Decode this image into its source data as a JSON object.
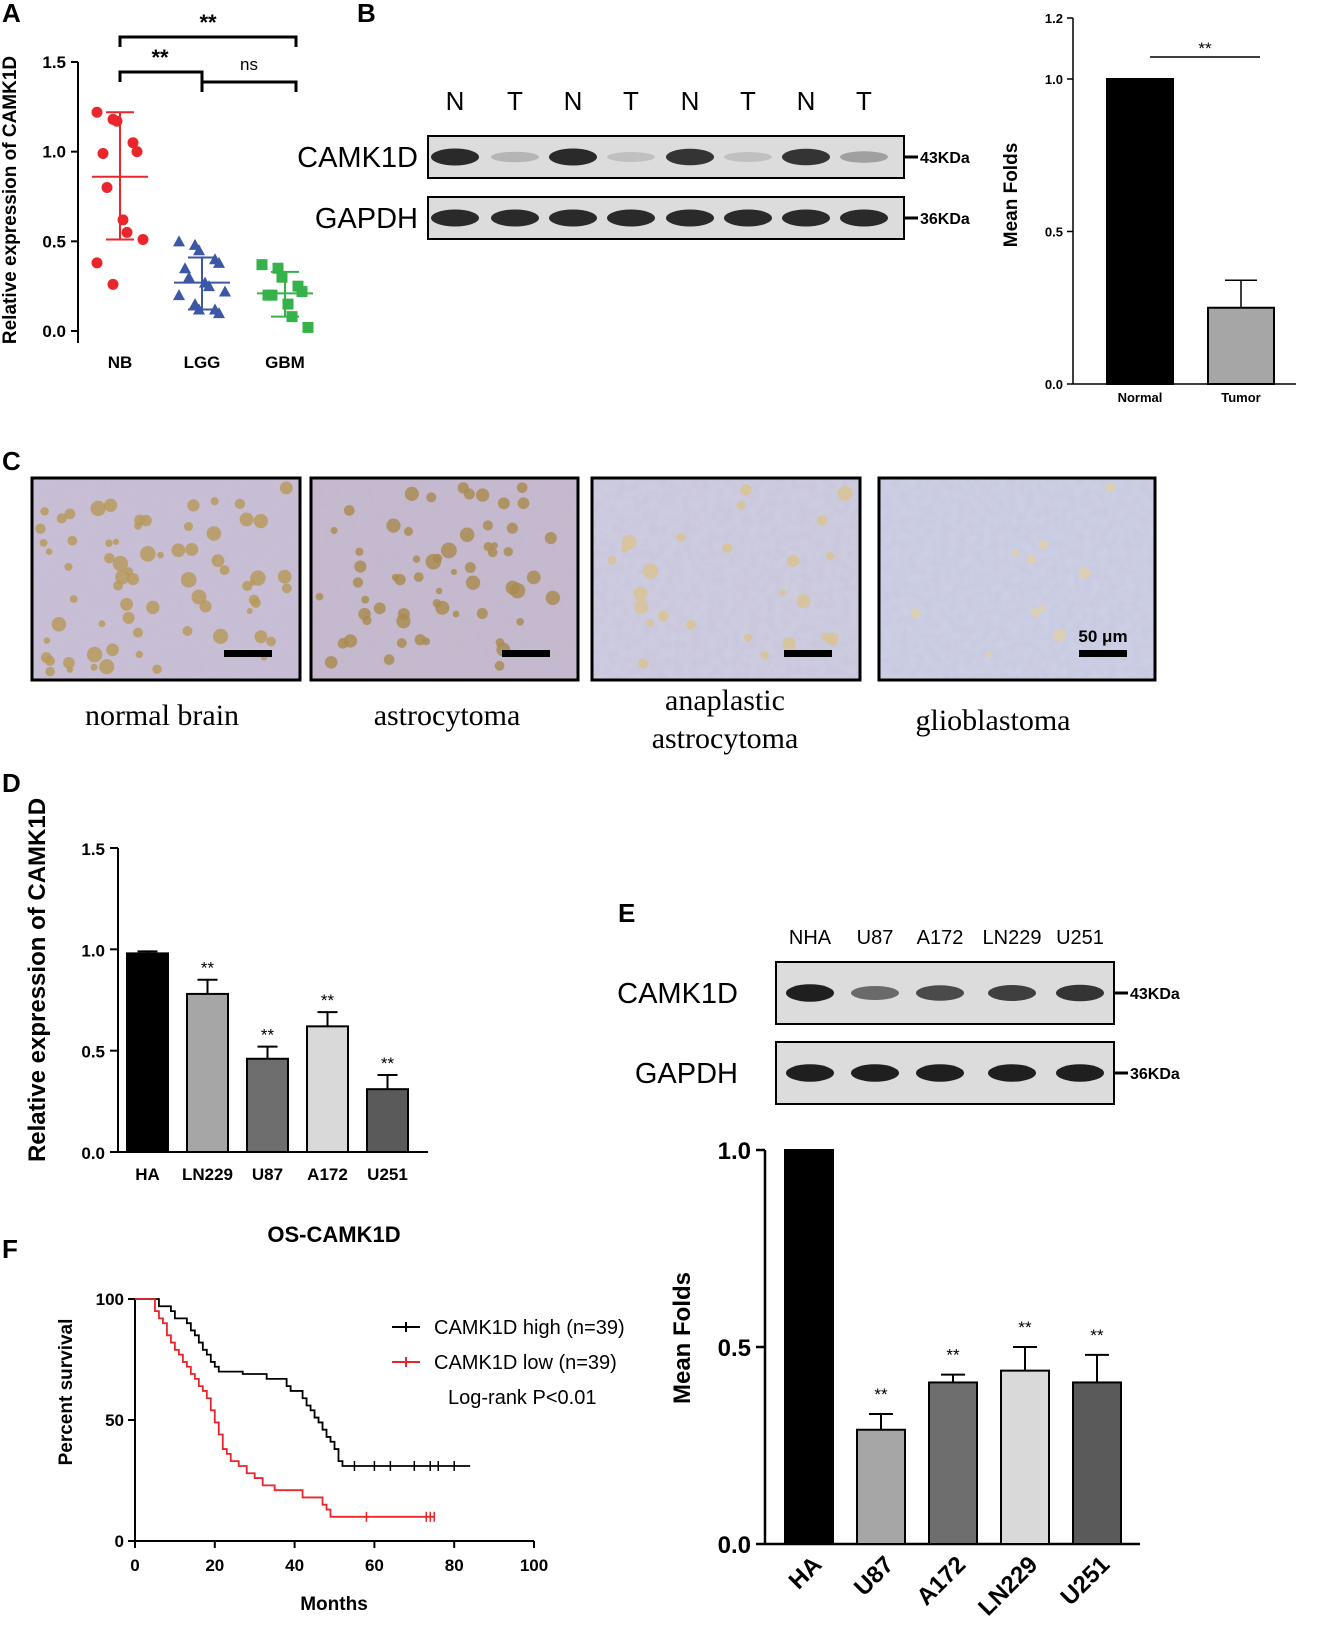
{
  "panels": {
    "A": {
      "label": "A",
      "ylabel": "Relative expression of CAMK1D",
      "sig_top": "**",
      "sig_left": "**",
      "sig_right": "ns",
      "chart_data": {
        "type": "scatter",
        "categories": [
          "NB",
          "LGG",
          "GBM"
        ],
        "ylim": [
          0,
          1.5
        ],
        "yticks": [
          "0.0",
          "0.5",
          "1.0",
          "1.5"
        ],
        "series": [
          {
            "name": "NB",
            "color": "#e8262b",
            "marker": "circle",
            "values": [
              1.22,
              1.18,
              1.17,
              1.05,
              1.0,
              0.99,
              0.8,
              0.62,
              0.55,
              0.51,
              0.38,
              0.26
            ],
            "mean": 0.86,
            "sd_low": 0.51,
            "sd_high": 1.22
          },
          {
            "name": "LGG",
            "color": "#3b57a6",
            "marker": "triangle",
            "values": [
              0.5,
              0.48,
              0.45,
              0.4,
              0.38,
              0.35,
              0.3,
              0.27,
              0.25,
              0.22,
              0.2,
              0.15,
              0.12,
              0.12,
              0.1
            ],
            "mean": 0.27,
            "sd_low": 0.12,
            "sd_high": 0.41
          },
          {
            "name": "GBM",
            "color": "#35b34a",
            "marker": "square",
            "values": [
              0.37,
              0.35,
              0.3,
              0.25,
              0.22,
              0.2,
              0.2,
              0.15,
              0.08,
              0.02
            ],
            "mean": 0.21,
            "sd_low": 0.08,
            "sd_high": 0.33
          }
        ]
      }
    },
    "B": {
      "label": "B",
      "blot": {
        "lanes": [
          "N",
          "T",
          "N",
          "T",
          "N",
          "T",
          "N",
          "T"
        ],
        "rows": [
          {
            "protein": "CAMK1D",
            "kda": "43KDa",
            "intensities": [
              0.9,
              0.25,
              0.9,
              0.2,
              0.85,
              0.2,
              0.85,
              0.35
            ]
          },
          {
            "protein": "GAPDH",
            "kda": "36KDa",
            "intensities": [
              0.9,
              0.9,
              0.9,
              0.9,
              0.9,
              0.9,
              0.9,
              0.9
            ]
          }
        ]
      },
      "ylabel": "Mean Folds",
      "sig": "**",
      "chart_data": {
        "type": "bar",
        "categories": [
          "Normal",
          "Tumor"
        ],
        "values": [
          1.0,
          0.25
        ],
        "errors": [
          0,
          0.09
        ],
        "colors": [
          "#000000",
          "#a6a6a6"
        ],
        "ylim": [
          0,
          1.2
        ],
        "yticks": [
          "0.0",
          "0.5",
          "1.0",
          "1.2"
        ]
      }
    },
    "C": {
      "label": "C",
      "images": [
        {
          "caption": [
            "normal brain"
          ],
          "scale_label": ""
        },
        {
          "caption": [
            "astrocytoma"
          ],
          "scale_label": ""
        },
        {
          "caption": [
            "anaplastic",
            "astrocytoma"
          ],
          "scale_label": ""
        },
        {
          "caption": [
            "glioblastoma"
          ],
          "scale_label": "50 μm"
        }
      ]
    },
    "D": {
      "label": "D",
      "ylabel": "Relative expression of CAMK1D",
      "chart_data": {
        "type": "bar",
        "categories": [
          "HA",
          "LN229",
          "U87",
          "A172",
          "U251"
        ],
        "values": [
          0.98,
          0.78,
          0.46,
          0.62,
          0.31
        ],
        "errors": [
          0.01,
          0.07,
          0.06,
          0.07,
          0.07
        ],
        "sig": [
          "",
          "**",
          "**",
          "**",
          "**"
        ],
        "colors": [
          "#000000",
          "#a6a6a6",
          "#6e6e6e",
          "#d9d9d9",
          "#5a5a5a"
        ],
        "ylim": [
          0,
          1.5
        ],
        "yticks": [
          "0.0",
          "0.5",
          "1.0",
          "1.5"
        ]
      }
    },
    "E": {
      "label": "E",
      "blot": {
        "lanes": [
          "NHA",
          "U87",
          "A172",
          "LN229",
          "U251"
        ],
        "rows": [
          {
            "protein": "CAMK1D",
            "kda": "43KDa",
            "intensities": [
              0.95,
              0.6,
              0.75,
              0.8,
              0.85
            ]
          },
          {
            "protein": "GAPDH",
            "kda": "36KDa",
            "intensities": [
              0.95,
              0.95,
              0.95,
              0.95,
              0.95
            ]
          }
        ]
      },
      "ylabel": "Mean Folds",
      "chart_data": {
        "type": "bar",
        "categories": [
          "HA",
          "U87",
          "A172",
          "LN229",
          "U251"
        ],
        "values": [
          1.0,
          0.29,
          0.41,
          0.44,
          0.41
        ],
        "errors": [
          0,
          0.04,
          0.02,
          0.06,
          0.07
        ],
        "sig": [
          "",
          "**",
          "**",
          "**",
          "**"
        ],
        "colors": [
          "#000000",
          "#a6a6a6",
          "#6e6e6e",
          "#d9d9d9",
          "#5a5a5a"
        ],
        "ylim": [
          0,
          1.0
        ],
        "yticks": [
          "0.0",
          "0.5",
          "1.0"
        ]
      }
    },
    "F": {
      "label": "F",
      "title": "OS-CAMK1D",
      "xlabel": "Months",
      "ylabel": "Percent survival",
      "legend_high": "CAMK1D high (n=39)",
      "legend_low": "CAMK1D low (n=39)",
      "pvalue": "Log-rank P<0.01",
      "chart_data": {
        "type": "line",
        "xlim": [
          0,
          100
        ],
        "ylim": [
          0,
          100
        ],
        "xticks": [
          "0",
          "20",
          "40",
          "60",
          "80",
          "100"
        ],
        "yticks": [
          "0",
          "50",
          "100"
        ],
        "series": [
          {
            "name": "CAMK1D high (n=39)",
            "color": "#000000",
            "x": [
              0,
              4,
              6,
              9,
              10,
              12,
              13,
              14,
              15,
              16,
              17,
              18,
              19,
              20,
              21,
              23,
              25,
              27,
              30,
              33,
              35,
              38,
              39,
              40,
              42,
              43,
              44,
              45,
              46,
              47,
              48,
              49,
              50,
              51,
              52,
              84
            ],
            "y": [
              100,
              100,
              97,
              95,
              92,
              92,
              90,
              87,
              85,
              82,
              79,
              77,
              74,
              72,
              70,
              70,
              70,
              69,
              69,
              67,
              67,
              64,
              62,
              62,
              59,
              56,
              54,
              51,
              49,
              46,
              43,
              41,
              38,
              33,
              31,
              31
            ]
          },
          {
            "name": "CAMK1D low (n=39)",
            "color": "#e8262b",
            "x": [
              0,
              4,
              5,
              6,
              7,
              8,
              9,
              10,
              11,
              12,
              13,
              14,
              15,
              16,
              17,
              18,
              19,
              20,
              21,
              22,
              23,
              24,
              26,
              28,
              30,
              32,
              35,
              40,
              42,
              45,
              47,
              48,
              49,
              75
            ],
            "y": [
              100,
              100,
              95,
              92,
              90,
              85,
              82,
              79,
              77,
              74,
              72,
              69,
              67,
              64,
              62,
              59,
              54,
              49,
              44,
              38,
              36,
              33,
              31,
              28,
              26,
              23,
              21,
              21,
              18,
              18,
              15,
              13,
              10,
              10
            ]
          }
        ]
      }
    }
  }
}
